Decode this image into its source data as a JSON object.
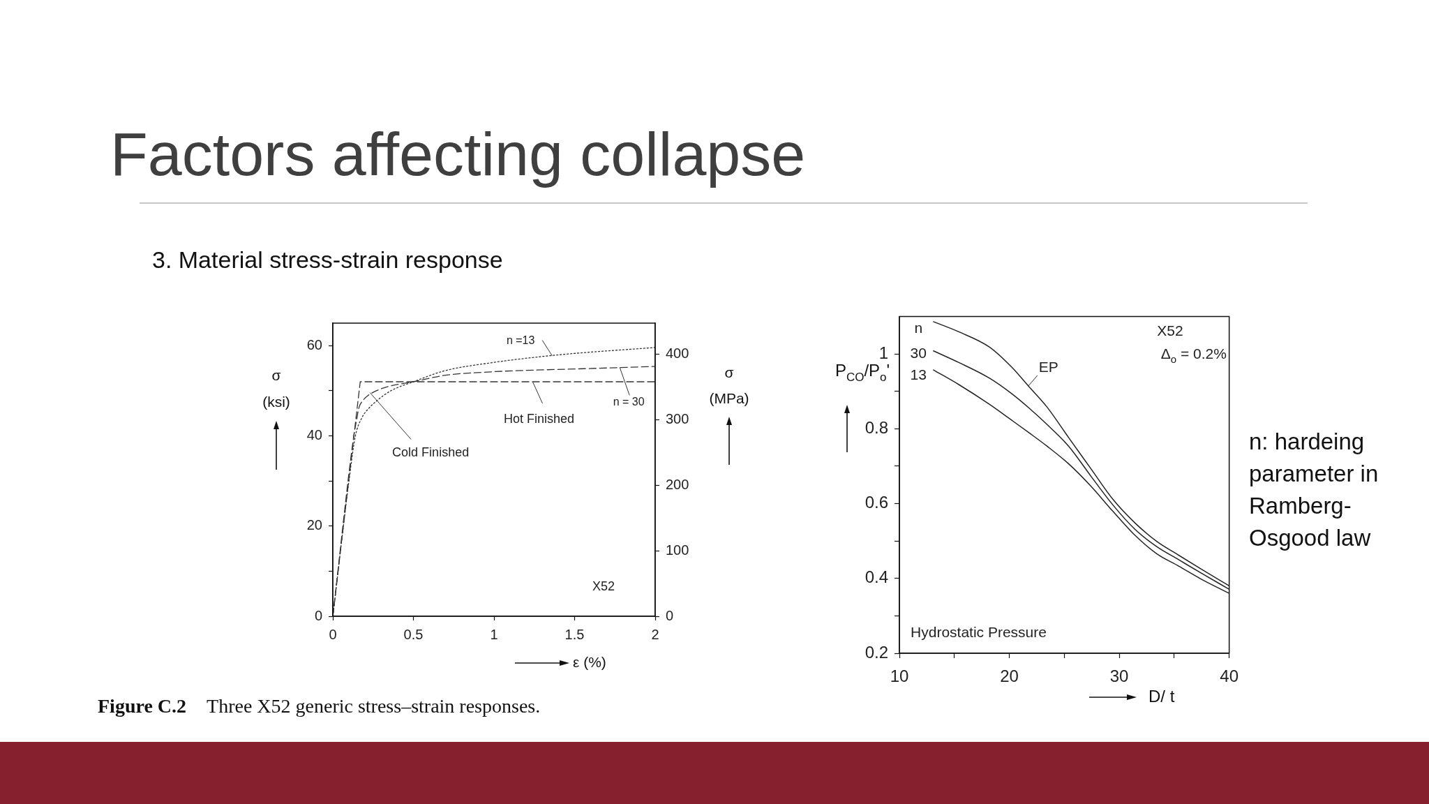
{
  "chart_data": [
    {
      "type": "line",
      "title": "Factors affecting collapse",
      "subtitle": "3. Material stress-strain response",
      "xlabel": "ε (%)",
      "ylabel": "σ (ksi)",
      "y2label": "σ (MPa)",
      "xlim": [
        0,
        2
      ],
      "xticks": [
        0,
        0.5,
        1,
        1.5,
        2
      ],
      "ylim": [
        0,
        65
      ],
      "yticks": [
        0,
        {
          "value": 10,
          "label": null
        },
        20,
        {
          "value": 30,
          "label": null
        },
        40,
        {
          "value": 50,
          "label": null
        },
        60
      ],
      "y2lim": [
        0,
        447
      ],
      "y2ticks": [
        0,
        100,
        200,
        300,
        400
      ],
      "marker": "none",
      "series": [
        {
          "color": "#333333",
          "line_style": "dotted",
          "x": [
            0,
            0.1,
            0.14,
            0.18,
            0.22,
            0.28,
            0.36,
            0.5,
            0.69,
            0.98,
            1.41,
            2
          ],
          "values": [
            0,
            30,
            40,
            44,
            46,
            48,
            50,
            52,
            54.4,
            56.2,
            58,
            59.6
          ]
        },
        {
          "color": "#333333",
          "line_style": "dashed",
          "x": [
            0,
            0.13,
            0.15,
            0.16,
            0.19,
            0.22,
            0.27,
            0.35,
            0.5,
            0.69,
            0.98,
            1.27,
            1.56,
            2
          ],
          "values": [
            0,
            40,
            44,
            46,
            48,
            49,
            50,
            51,
            52,
            53.4,
            54.2,
            54.6,
            54.9,
            55.4
          ]
        },
        {
          "color": "#333333",
          "line_style": "dashed",
          "x": [
            0,
            0.17,
            2
          ],
          "values": [
            0,
            52,
            52
          ]
        }
      ],
      "annotations": [
        {
          "text": "n =13",
          "x": 1.36,
          "y": 57.8
        },
        {
          "text": "n = 30",
          "x": 1.78,
          "y": 55.2
        },
        {
          "text": "Hot Finished",
          "x": 1.24,
          "y": 52
        },
        {
          "text": "Cold Finished",
          "x": 0.23,
          "y": 49.6
        },
        "X52",
        "Figure C.2 Three X52 generic stress–strain responses."
      ]
    },
    {
      "type": "line",
      "xlabel": "D/ t",
      "ylabel": "P$_{CO}$/P$_{o}$'",
      "xlim": [
        10,
        40
      ],
      "xticks": [
        10,
        {
          "value": 15,
          "label": null
        },
        20,
        {
          "value": 25,
          "label": null
        },
        30,
        {
          "value": 35,
          "label": null
        },
        40
      ],
      "ylim": [
        0.2,
        1.1
      ],
      "yticks": [
        0.2,
        {
          "value": 0.3,
          "label": null
        },
        0.4,
        {
          "value": 0.5,
          "label": null
        },
        0.6,
        {
          "value": 0.7,
          "label": null
        },
        0.8,
        {
          "value": 0.9,
          "label": null
        },
        1
      ],
      "marker": "none",
      "x": [
        13.1,
        15.4,
        18.2,
        20.2,
        21.8,
        23.4,
        25.4,
        27.4,
        29.4,
        31.4,
        33.4,
        35.4,
        37.4,
        40
      ],
      "series": [
        {
          "name": "EP",
          "color": "#222222",
          "values": [
            1.086,
            1.059,
            1.018,
            0.965,
            0.912,
            0.859,
            0.776,
            0.694,
            0.612,
            0.549,
            0.499,
            0.462,
            0.426,
            0.38
          ]
        },
        {
          "name": "30",
          "color": "#222222",
          "values": [
            1.008,
            0.977,
            0.935,
            0.894,
            0.855,
            0.812,
            0.753,
            0.674,
            0.597,
            0.532,
            0.485,
            0.45,
            0.415,
            0.371
          ]
        },
        {
          "name": "13",
          "color": "#222222",
          "values": [
            0.957,
            0.918,
            0.865,
            0.823,
            0.789,
            0.754,
            0.706,
            0.647,
            0.58,
            0.516,
            0.466,
            0.433,
            0.399,
            0.36
          ]
        }
      ],
      "annotations": [
        "n",
        "X52",
        "Δ$_{o}$ = 0.2%",
        "Hydrostatic Pressure",
        "n: hardeing parameter in Ramberg-Osgood law"
      ]
    }
  ]
}
